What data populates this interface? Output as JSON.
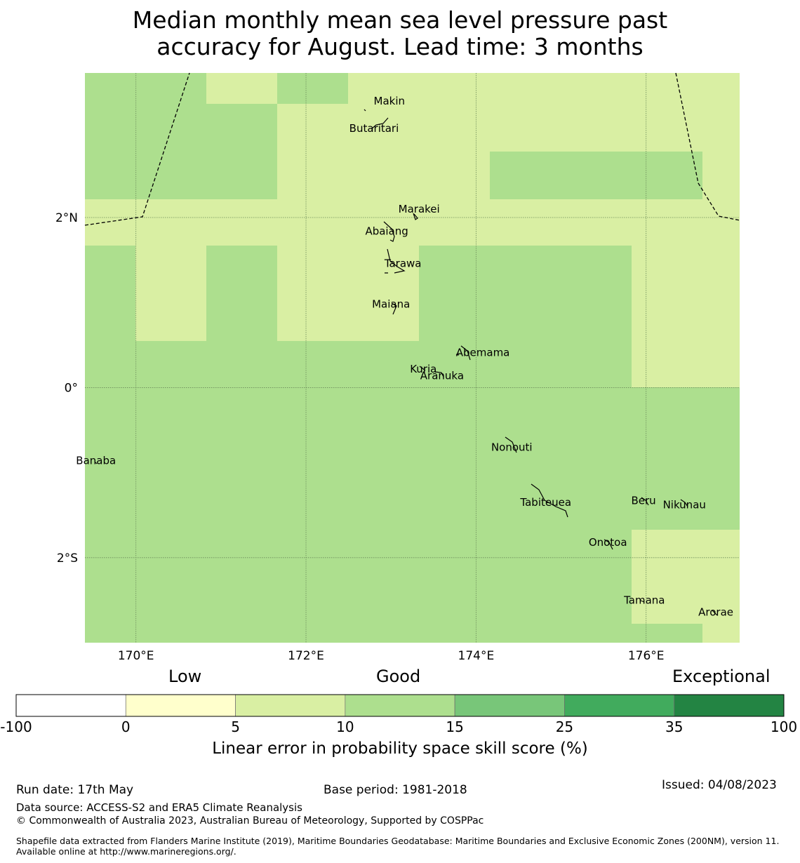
{
  "title_line1": "Median monthly mean sea level pressure past",
  "title_line2": "accuracy for August. Lead time: 3 months",
  "map": {
    "lon_range": [
      169.4,
      177.1
    ],
    "lat_range": [
      -3.0,
      3.7
    ],
    "x_ticks": [
      {
        "lon": 170,
        "label": "170°E"
      },
      {
        "lon": 172,
        "label": "172°E"
      },
      {
        "lon": 174,
        "label": "174°E"
      },
      {
        "lon": 176,
        "label": "176°E"
      }
    ],
    "y_ticks": [
      {
        "lat": 2,
        "label": "2°N"
      },
      {
        "lat": 0,
        "label": "0°"
      },
      {
        "lat": -2,
        "label": "2°S"
      }
    ],
    "colors": {
      "good_light": "#d9efa3",
      "good_mid": "#addf8e"
    },
    "islands": [
      {
        "name": "Makin",
        "lon": 172.98,
        "lat": 3.37
      },
      {
        "name": "Butaritari",
        "lon": 172.8,
        "lat": 3.05
      },
      {
        "name": "Marakei",
        "lon": 173.33,
        "lat": 2.1
      },
      {
        "name": "Abaiang",
        "lon": 172.95,
        "lat": 1.84
      },
      {
        "name": "Tarawa",
        "lon": 173.14,
        "lat": 1.46
      },
      {
        "name": "Maiana",
        "lon": 173.0,
        "lat": 0.98
      },
      {
        "name": "Abemama",
        "lon": 174.08,
        "lat": 0.41
      },
      {
        "name": "Kuria",
        "lon": 173.38,
        "lat": 0.22
      },
      {
        "name": "Aranuka",
        "lon": 173.6,
        "lat": 0.14
      },
      {
        "name": "Nonouti",
        "lon": 174.42,
        "lat": -0.7
      },
      {
        "name": "Banaba",
        "lon": 169.53,
        "lat": -0.86
      },
      {
        "name": "Beru",
        "lon": 175.97,
        "lat": -1.33
      },
      {
        "name": "Tabiteuea",
        "lon": 174.82,
        "lat": -1.35
      },
      {
        "name": "Nikunau",
        "lon": 176.45,
        "lat": -1.38
      },
      {
        "name": "Onotoa",
        "lon": 175.55,
        "lat": -1.82
      },
      {
        "name": "Tamana",
        "lon": 175.98,
        "lat": -2.5
      },
      {
        "name": "Arorae",
        "lon": 176.82,
        "lat": -2.64
      }
    ]
  },
  "colorbar": {
    "categories": [
      "Low",
      "Good",
      "Exceptional"
    ],
    "bins": [
      {
        "from": "-100",
        "to": "0",
        "color": "#ffffff"
      },
      {
        "from": "0",
        "to": "5",
        "color": "#ffffcc"
      },
      {
        "from": "5",
        "to": "10",
        "color": "#d9efa3"
      },
      {
        "from": "10",
        "to": "15",
        "color": "#addf8e"
      },
      {
        "from": "15",
        "to": "25",
        "color": "#78c679"
      },
      {
        "from": "25",
        "to": "35",
        "color": "#41ab5d"
      },
      {
        "from": "35",
        "to": "100",
        "color": "#238443"
      }
    ],
    "ticks": [
      "-100",
      "0",
      "5",
      "10",
      "15",
      "25",
      "35",
      "100"
    ],
    "label": "Linear error in probability space skill score (%)"
  },
  "footer": {
    "run_date": "Run date: 17th May",
    "base_period": "Base period: 1981-2018",
    "issued": "Issued: 04/08/2023",
    "data_source": "Data source: ACCESS-S2 and ERA5 Climate Reanalysis",
    "copyright": "© Commonwealth of Australia 2023, Australian Bureau of Meteorology, Supported by COSPPac",
    "shapefile": "Shapefile data extracted from Flanders Marine Institute (2019), Maritime Boundaries Geodatabase: Maritime Boundaries and Exclusive Economic Zones (200NM), version 11. Available online at http://www.marineregions.org/."
  }
}
